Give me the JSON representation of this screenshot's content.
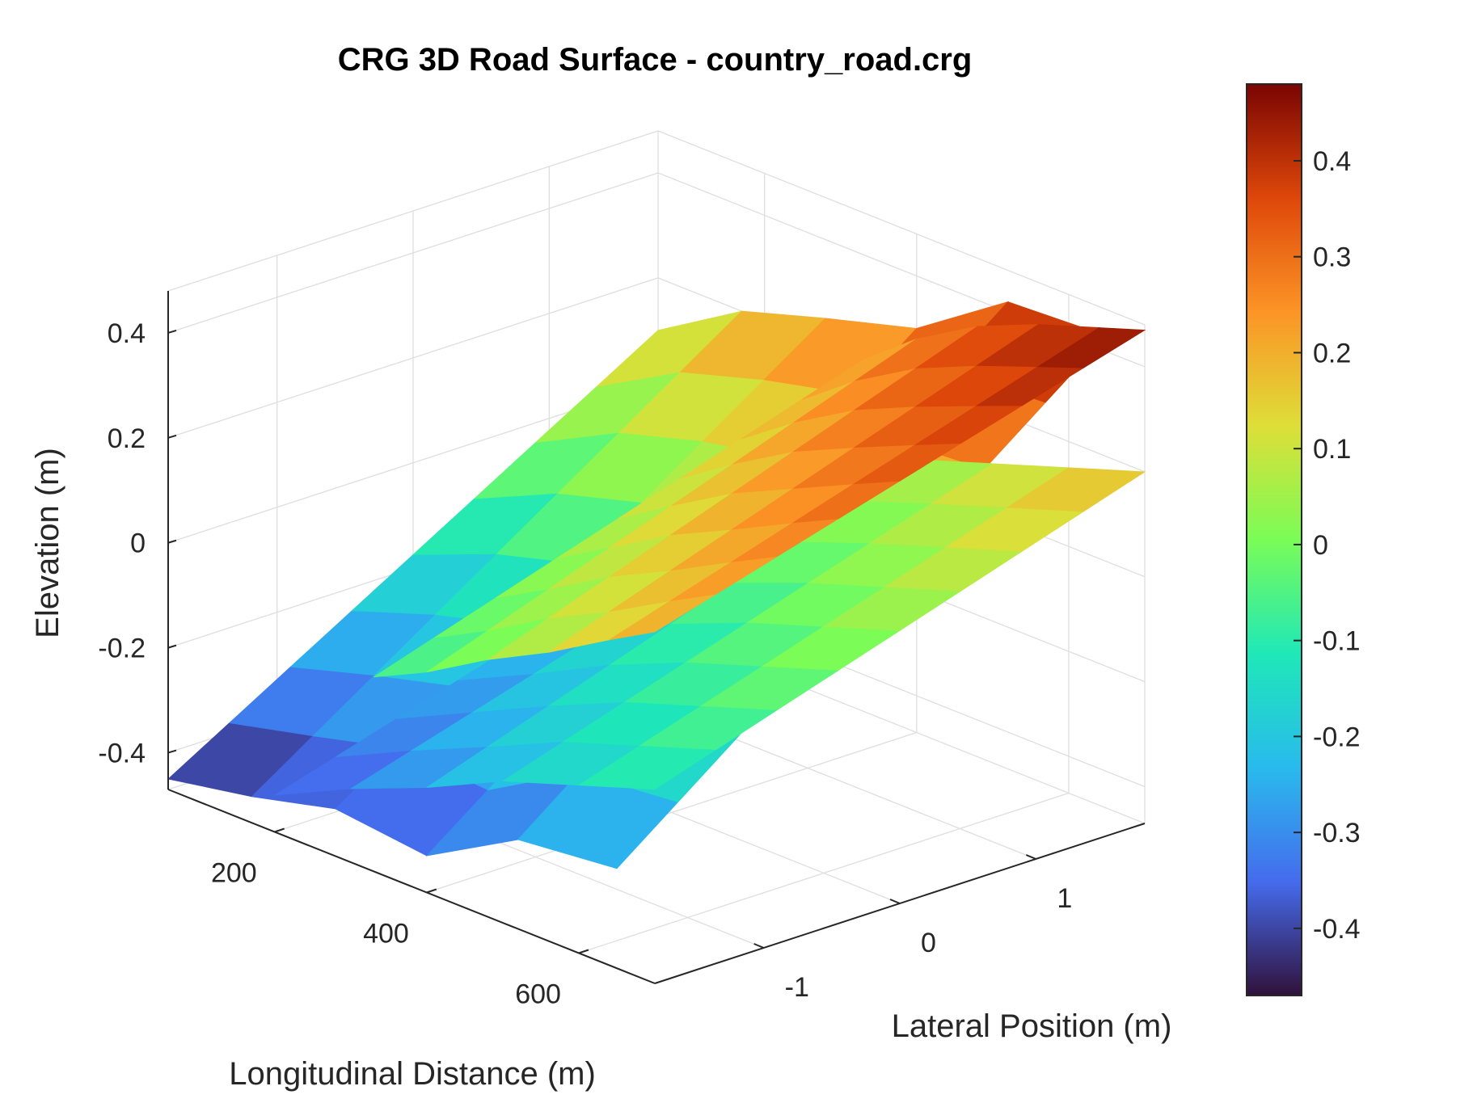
{
  "chart_data": {
    "type": "surface3d",
    "title": "CRG 3D Road Surface - country_road.crg",
    "xlabel": "Longitudinal Distance (m)",
    "ylabel": "Lateral Position (m)",
    "zlabel": "Elevation (m)",
    "xlim": [
      60,
      700
    ],
    "ylim": [
      -1.8,
      1.8
    ],
    "zlim": [
      -0.47,
      0.48
    ],
    "x_ticks": [
      200,
      400,
      600
    ],
    "y_ticks": [
      -1,
      0,
      1
    ],
    "z_ticks": [
      -0.4,
      -0.2,
      0,
      0.2,
      0.4
    ],
    "grid": true,
    "colormap": "turbo",
    "color_range": [
      -0.47,
      0.48
    ],
    "colorbar_ticks": [
      -0.4,
      -0.3,
      -0.2,
      -0.1,
      0,
      0.1,
      0.2,
      0.3,
      0.4
    ],
    "colorbar_location": "right",
    "lateral_positions": [
      -1.8,
      1.8
    ],
    "segments": [
      {
        "x": [
          60,
          170,
          280,
          400,
          520,
          650
        ],
        "z_left": [
          -0.45,
          -0.42,
          -0.38,
          -0.4,
          -0.3,
          -0.28
        ],
        "z_right": [
          0.1,
          0.2,
          0.25,
          0.3,
          0.42,
          0.43
        ]
      },
      {
        "x": [
          200,
          300,
          400,
          500,
          600,
          700
        ],
        "z_left": [
          -0.4,
          -0.33,
          -0.27,
          -0.2,
          -0.15,
          -0.1
        ],
        "z_right": [
          -0.12,
          -0.05,
          0.05,
          0.1,
          0.15,
          0.2
        ]
      },
      {
        "x": [
          330,
          400,
          480,
          560,
          640,
          700
        ],
        "z_left": [
          -0.1,
          -0.05,
          0.02,
          0.08,
          0.15,
          0.2
        ],
        "z_right": [
          0.2,
          0.28,
          0.35,
          0.4,
          0.44,
          0.47
        ]
      }
    ]
  }
}
